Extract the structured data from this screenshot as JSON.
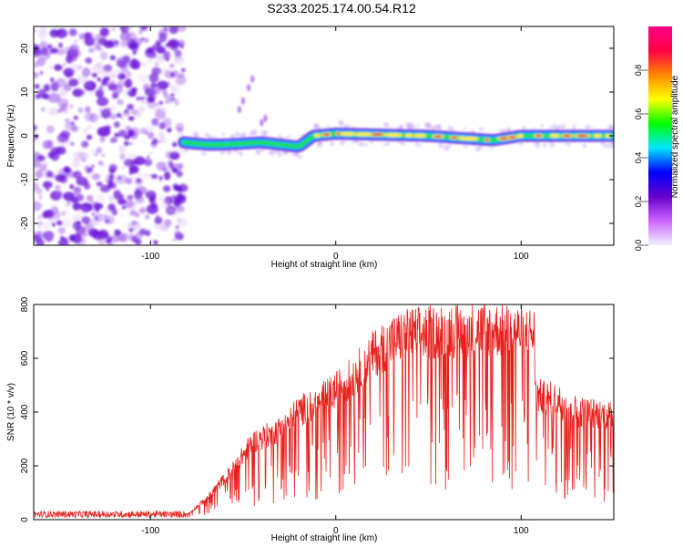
{
  "title": "S233.2025.174.00.54.R12",
  "colors": {
    "snr_line": "#e8201c",
    "noise_purple": "#7a1fd8",
    "track_core": "#e0102c",
    "frame": "#000000"
  },
  "chart_data": [
    {
      "type": "heatmap",
      "xlabel": "Height of straight line (km)",
      "ylabel": "Frequency (Hz)",
      "xlim": [
        -163,
        150
      ],
      "ylim": [
        -25,
        25
      ],
      "xticks": [
        -100,
        0,
        100
      ],
      "yticks": [
        -20,
        -10,
        0,
        10,
        20
      ],
      "grid": false,
      "noise_region_x": [
        -163,
        -82
      ],
      "track_frequency": [
        {
          "x": -82,
          "y": -1.5
        },
        {
          "x": -70,
          "y": -2
        },
        {
          "x": -60,
          "y": -2
        },
        {
          "x": -40,
          "y": -1.5
        },
        {
          "x": -20,
          "y": -2.5
        },
        {
          "x": -12,
          "y": 0
        },
        {
          "x": 0,
          "y": 0.5
        },
        {
          "x": 50,
          "y": 0
        },
        {
          "x": 85,
          "y": -1
        },
        {
          "x": 100,
          "y": 0
        },
        {
          "x": 150,
          "y": 0
        }
      ],
      "colorbar": {
        "label": "Normalized spectral amplitude",
        "range": [
          0,
          1
        ],
        "ticks": [
          "0.0",
          "0.2",
          "0.4",
          "0.6",
          "0.8"
        ],
        "stops": [
          "#f0f0ff",
          "#cc66ff",
          "#6600cc",
          "#0000ff",
          "#00e5ff",
          "#00ff00",
          "#ffff00",
          "#ff8800",
          "#ff0044",
          "#ff0088"
        ]
      }
    },
    {
      "type": "line",
      "xlabel": "Height of straight line (km)",
      "ylabel": "SNR (10 * v/v)",
      "xlim": [
        -163,
        150
      ],
      "ylim": [
        0,
        800
      ],
      "xticks": [
        -100,
        0,
        100
      ],
      "yticks": [
        0,
        200,
        400,
        600,
        800
      ],
      "grid": false,
      "envelope": [
        {
          "x": -163,
          "y": 20
        },
        {
          "x": -80,
          "y": 20
        },
        {
          "x": -70,
          "y": 80
        },
        {
          "x": -55,
          "y": 200
        },
        {
          "x": -45,
          "y": 300
        },
        {
          "x": -30,
          "y": 350
        },
        {
          "x": -20,
          "y": 420
        },
        {
          "x": -10,
          "y": 450
        },
        {
          "x": 0,
          "y": 500
        },
        {
          "x": 10,
          "y": 560
        },
        {
          "x": 20,
          "y": 640
        },
        {
          "x": 30,
          "y": 690
        },
        {
          "x": 40,
          "y": 720
        },
        {
          "x": 60,
          "y": 730
        },
        {
          "x": 80,
          "y": 740
        },
        {
          "x": 107,
          "y": 720
        },
        {
          "x": 108,
          "y": 480
        },
        {
          "x": 120,
          "y": 460
        },
        {
          "x": 130,
          "y": 420
        },
        {
          "x": 150,
          "y": 400
        }
      ],
      "series": [
        {
          "name": "",
          "color": "#e8201c"
        }
      ]
    }
  ]
}
